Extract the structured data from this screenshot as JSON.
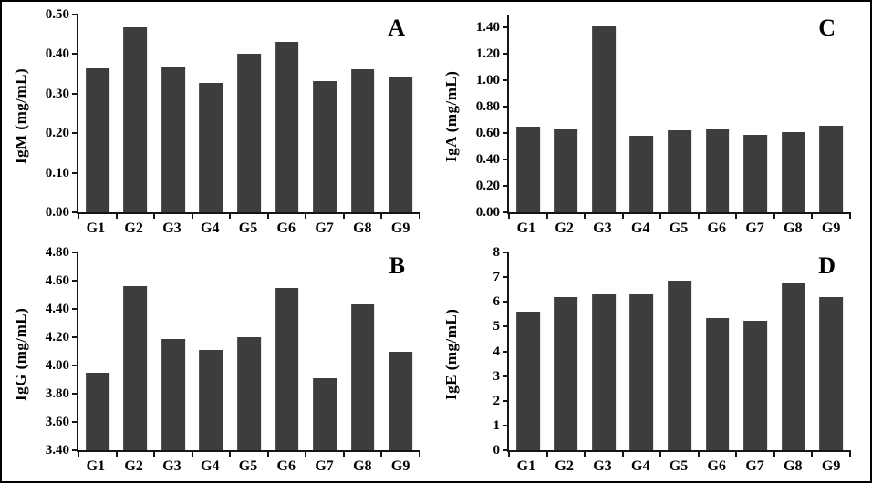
{
  "figure": {
    "title": "",
    "bar_color": "#3d3d3d",
    "axis_color": "#161616",
    "border_color": "#000000",
    "background_color": "#ffffff"
  },
  "chart_data": {
    "type": "bar",
    "categories": [
      "G1",
      "G2",
      "G3",
      "G4",
      "G5",
      "G6",
      "G7",
      "G8",
      "G9"
    ],
    "legend": null,
    "grid": false,
    "panels": [
      {
        "panel": "A",
        "ylabel": "IgM (mg/mL)",
        "xlabel": "",
        "values": [
          0.363,
          0.468,
          0.368,
          0.328,
          0.401,
          0.43,
          0.332,
          0.361,
          0.34
        ],
        "ylim": [
          0,
          0.5
        ],
        "yticks": [
          0.0,
          0.1,
          0.2,
          0.3,
          0.4,
          0.5
        ],
        "tick_decimals": 2
      },
      {
        "panel": "C",
        "ylabel": "IgA (mg/mL)",
        "xlabel": "",
        "values": [
          0.65,
          0.63,
          1.41,
          0.58,
          0.62,
          0.63,
          0.59,
          0.61,
          0.66
        ],
        "ylim": [
          0,
          1.5
        ],
        "yticks": [
          0.0,
          0.2,
          0.4,
          0.6,
          0.8,
          1.0,
          1.2,
          1.4
        ],
        "tick_decimals": 2
      },
      {
        "panel": "B",
        "ylabel": "IgG (mg/mL)",
        "xlabel": "",
        "values": [
          3.95,
          4.56,
          4.19,
          4.11,
          4.2,
          4.55,
          3.91,
          4.43,
          4.1
        ],
        "ylim": [
          3.4,
          4.8
        ],
        "yticks": [
          3.4,
          3.6,
          3.8,
          4.0,
          4.2,
          4.4,
          4.6,
          4.8
        ],
        "tick_decimals": 2
      },
      {
        "panel": "D",
        "ylabel": "IgE (mg/mL)",
        "xlabel": "",
        "values": [
          5.6,
          6.2,
          6.3,
          6.3,
          6.85,
          5.35,
          5.25,
          6.75,
          6.2
        ],
        "ylim": [
          0,
          8
        ],
        "yticks": [
          0,
          1,
          2,
          3,
          4,
          5,
          6,
          7,
          8
        ],
        "tick_decimals": 0
      }
    ]
  }
}
